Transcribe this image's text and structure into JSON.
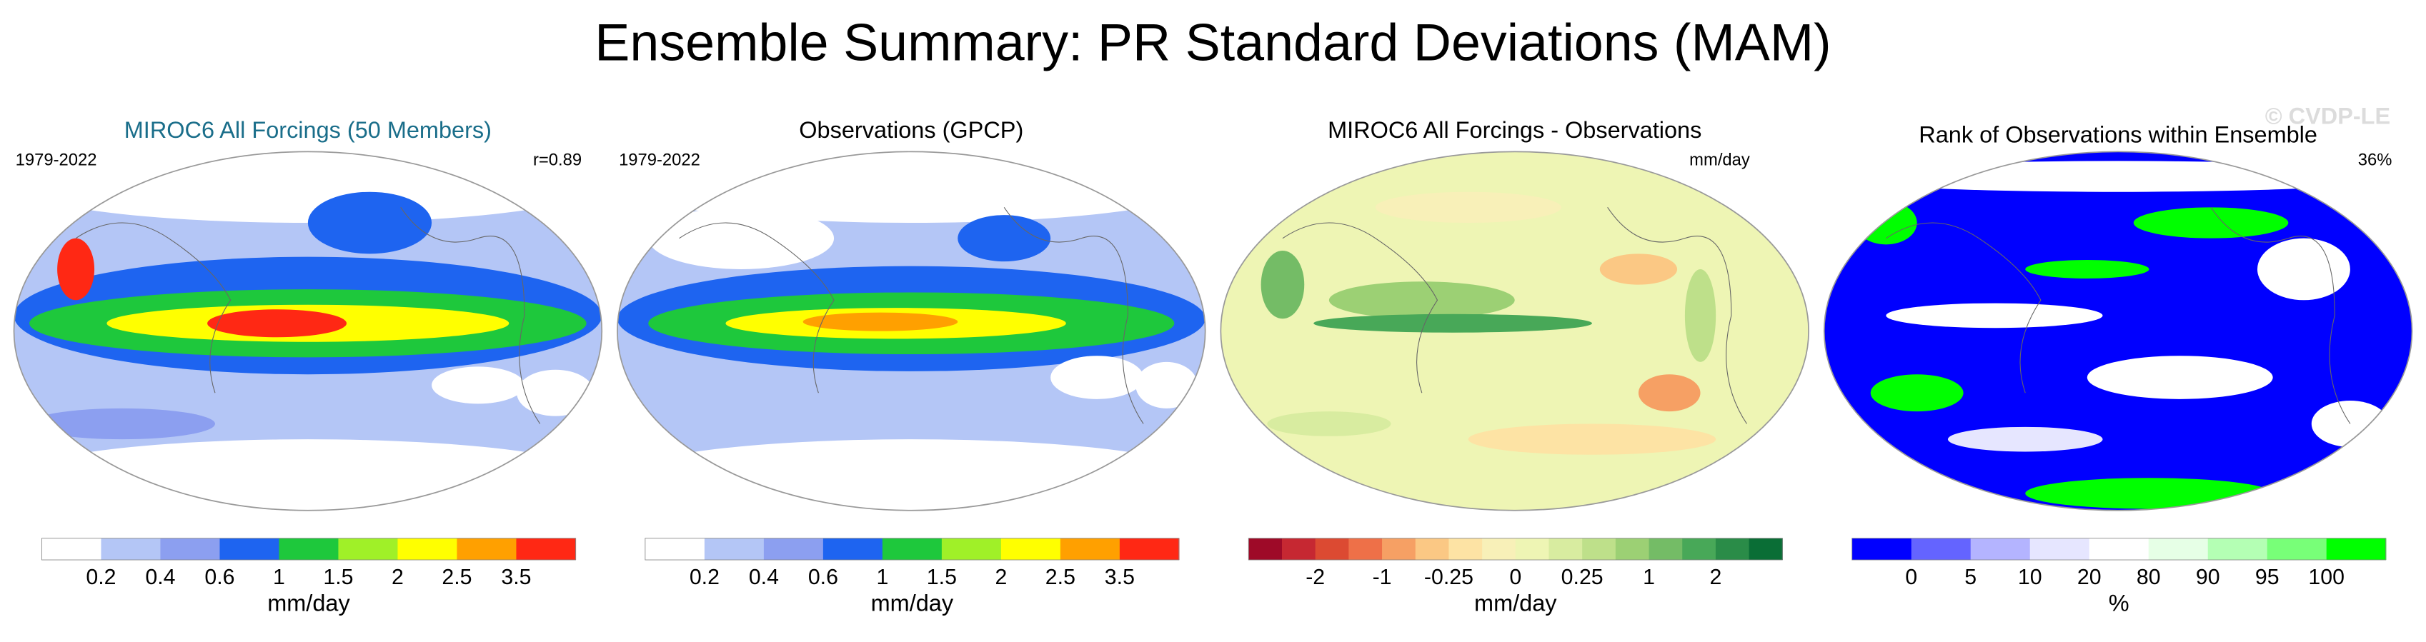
{
  "title": "Ensemble Summary: PR Standard Deviations (MAM)",
  "watermark": "© CVDP-LE",
  "panels": [
    {
      "title": "MIROC6 All Forcings (50 Members)",
      "title_color": "#1a6e8a",
      "left_label": "1979-2022",
      "right_label": "r=0.89",
      "colorbar": {
        "colors": [
          "#ffffff",
          "#b4c6f6",
          "#8c9ff0",
          "#1e64f0",
          "#1ec83c",
          "#a0f028",
          "#ffff00",
          "#ffa000",
          "#ff2814"
        ],
        "ticks": [
          0.2,
          0.4,
          0.6,
          1,
          1.5,
          2,
          2.5,
          3.5
        ],
        "unit": "mm/day"
      }
    },
    {
      "title": "Observations (GPCP)",
      "title_color": "#000000",
      "left_label": "1979-2022",
      "colorbar": {
        "colors": [
          "#ffffff",
          "#b4c6f6",
          "#8c9ff0",
          "#1e64f0",
          "#1ec83c",
          "#a0f028",
          "#ffff00",
          "#ffa000",
          "#ff2814"
        ],
        "ticks": [
          0.2,
          0.4,
          0.6,
          1,
          1.5,
          2,
          2.5,
          3.5
        ],
        "unit": "mm/day"
      }
    },
    {
      "title": "MIROC6 All Forcings - Observations",
      "title_color": "#000000",
      "right_label": "mm/day",
      "colorbar": {
        "colors": [
          "#9e0a28",
          "#c62832",
          "#dc4a32",
          "#ee7048",
          "#f6a064",
          "#fbc884",
          "#fde3a4",
          "#f8f0b8",
          "#eef5b4",
          "#d8eca0",
          "#bee08a",
          "#9cd074",
          "#74bc66",
          "#48a858",
          "#2a8c48",
          "#0a6e36"
        ],
        "ticks": [
          -2,
          -1,
          -0.25,
          0,
          0.25,
          1,
          2
        ],
        "unit": "mm/day"
      }
    },
    {
      "title": "Rank of Observations within Ensemble",
      "title_color": "#000000",
      "right_label": "36%",
      "colorbar": {
        "colors": [
          "#0000ff",
          "#6464ff",
          "#b4b4ff",
          "#e6e6ff",
          "#ffffff",
          "#e6ffe6",
          "#b4ffb4",
          "#78ff78",
          "#00ff00"
        ],
        "ticks": [
          0,
          5,
          10,
          20,
          80,
          90,
          95,
          100
        ],
        "unit": "%"
      }
    }
  ]
}
